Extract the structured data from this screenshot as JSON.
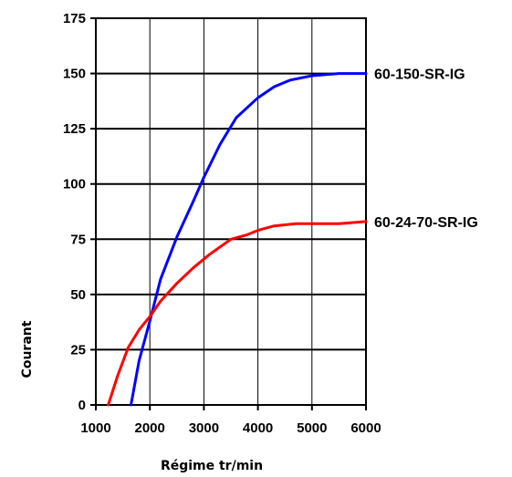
{
  "chart_data": {
    "type": "line",
    "title": "",
    "xlabel": "Régime tr/min",
    "ylabel": "Courant",
    "xlim": [
      1000,
      6000
    ],
    "ylim": [
      0,
      175
    ],
    "x_ticks": [
      "1000",
      "2000",
      "3000",
      "4000",
      "5000",
      "6000"
    ],
    "y_ticks": [
      "0",
      "25",
      "50",
      "75",
      "100",
      "125",
      "150",
      "175"
    ],
    "grid": "major",
    "series": [
      {
        "name": "60-150-SR-IG",
        "color": "#0000ff",
        "points": [
          [
            1650,
            0
          ],
          [
            1800,
            20
          ],
          [
            2000,
            38
          ],
          [
            2200,
            57
          ],
          [
            2500,
            76
          ],
          [
            2800,
            92
          ],
          [
            3000,
            103
          ],
          [
            3300,
            118
          ],
          [
            3600,
            130
          ],
          [
            4000,
            139
          ],
          [
            4300,
            144
          ],
          [
            4600,
            147
          ],
          [
            5000,
            149
          ],
          [
            5500,
            150
          ],
          [
            6000,
            150
          ]
        ]
      },
      {
        "name": "60-24-70-SR-IG",
        "color": "#ff0000",
        "points": [
          [
            1230,
            0
          ],
          [
            1400,
            13
          ],
          [
            1600,
            26
          ],
          [
            1800,
            34
          ],
          [
            2000,
            40
          ],
          [
            2200,
            47
          ],
          [
            2500,
            55
          ],
          [
            2800,
            62
          ],
          [
            3100,
            68
          ],
          [
            3500,
            75
          ],
          [
            3800,
            77
          ],
          [
            4000,
            79
          ],
          [
            4300,
            81
          ],
          [
            4700,
            82
          ],
          [
            5000,
            82
          ],
          [
            5500,
            82
          ],
          [
            6000,
            83
          ]
        ]
      }
    ]
  }
}
